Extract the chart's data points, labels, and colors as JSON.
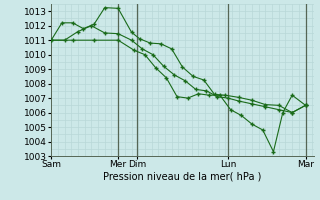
{
  "background_color": "#cce8e8",
  "grid_major_color": "#b8d8d8",
  "grid_minor_color": "#cce8e8",
  "line_color": "#1a6b1a",
  "ylabel": "Pression niveau de la mer( hPa )",
  "ylim": [
    1003,
    1013.5
  ],
  "yticks": [
    1003,
    1004,
    1005,
    1006,
    1007,
    1008,
    1009,
    1010,
    1011,
    1012,
    1013
  ],
  "series": [
    {
      "x": [
        0.0,
        0.4,
        0.8,
        1.2,
        1.6,
        2.0,
        2.5,
        3.0,
        3.3,
        3.7,
        4.1,
        4.5,
        4.9,
        5.3,
        5.7,
        6.1,
        6.5,
        7.0,
        7.5,
        8.0,
        8.5,
        9.0,
        9.5
      ],
      "y": [
        1011.0,
        1012.2,
        1012.2,
        1011.8,
        1012.1,
        1013.25,
        1013.2,
        1011.55,
        1011.1,
        1010.8,
        1010.75,
        1010.4,
        1009.15,
        1008.5,
        1008.25,
        1007.25,
        1007.2,
        1007.05,
        1006.85,
        1006.55,
        1006.5,
        1006.0,
        1006.5
      ]
    },
    {
      "x": [
        0.0,
        0.5,
        1.0,
        1.5,
        2.0,
        2.5,
        3.0,
        3.4,
        3.8,
        4.2,
        4.6,
        5.0,
        5.4,
        5.8,
        6.2,
        6.6,
        7.0,
        7.5,
        8.0,
        8.5,
        9.0,
        9.5
      ],
      "y": [
        1011.0,
        1011.0,
        1011.6,
        1012.0,
        1011.5,
        1011.45,
        1011.0,
        1010.4,
        1010.0,
        1009.2,
        1008.6,
        1008.2,
        1007.6,
        1007.5,
        1007.1,
        1007.0,
        1006.8,
        1006.6,
        1006.4,
        1006.2,
        1006.0,
        1006.5
      ]
    },
    {
      "x": [
        0.0,
        0.8,
        1.6,
        2.5,
        3.1,
        3.5,
        3.9,
        4.3,
        4.7,
        5.1,
        5.5,
        5.9,
        6.3,
        6.7,
        7.1,
        7.5,
        7.9,
        8.3,
        8.65,
        9.0,
        9.5
      ],
      "y": [
        1011.0,
        1011.0,
        1011.0,
        1011.0,
        1010.3,
        1010.0,
        1009.1,
        1008.4,
        1007.1,
        1007.0,
        1007.3,
        1007.2,
        1007.2,
        1006.2,
        1005.8,
        1005.2,
        1004.8,
        1003.3,
        1006.0,
        1007.2,
        1006.5
      ]
    }
  ],
  "vlines_x": [
    2.5,
    3.2,
    6.6,
    9.5
  ],
  "vline_color": "#556655",
  "xtick_positions": [
    0.0,
    2.5,
    3.2,
    6.6,
    9.5
  ],
  "xtick_labels": [
    "Sam",
    "Mer",
    "Dim",
    "Lun",
    "Mar"
  ]
}
